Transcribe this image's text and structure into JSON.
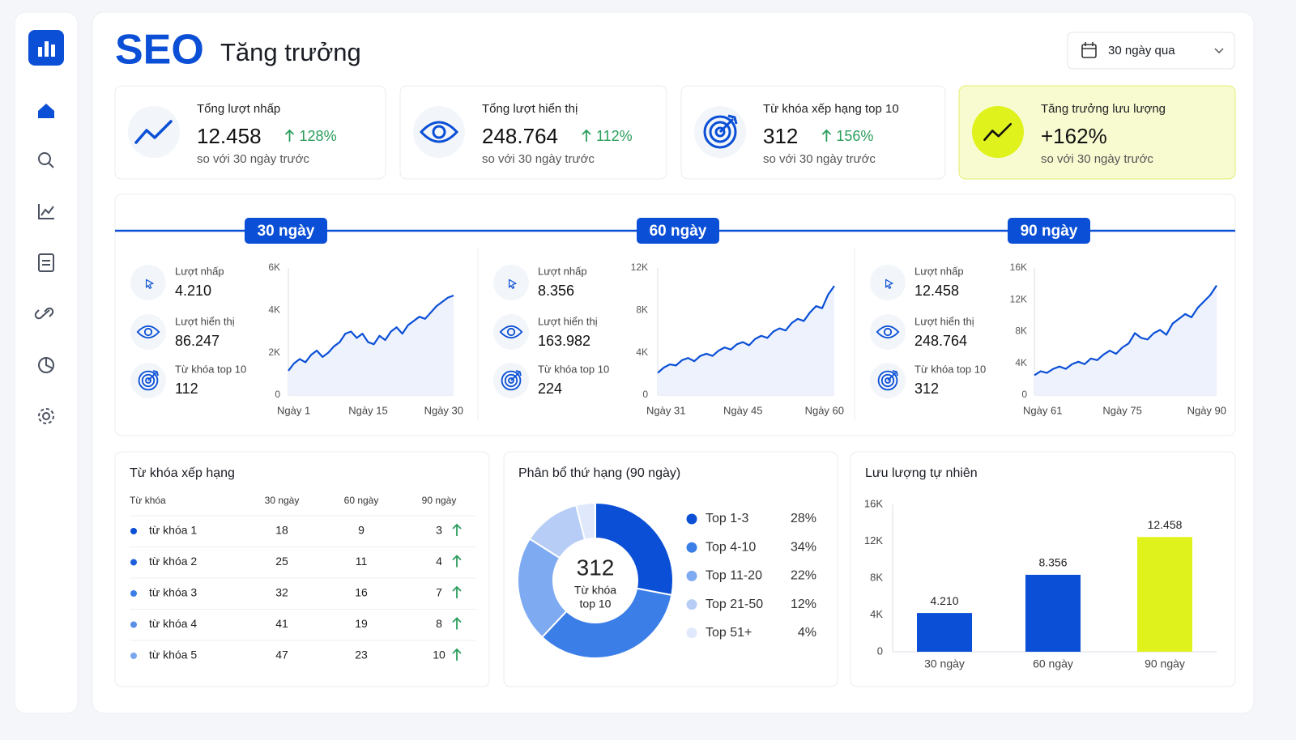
{
  "header": {
    "logo": "SEO",
    "title": "Tăng trưởng",
    "date_range": "30 ngày qua"
  },
  "kpis": [
    {
      "label": "Tổng lượt nhấp",
      "value": "12.458",
      "change": "128%",
      "note": "so với 30 ngày trước"
    },
    {
      "label": "Tổng lượt hiển thị",
      "value": "248.764",
      "change": "112%",
      "note": "so với 30 ngày trước"
    },
    {
      "label": "Từ khóa xếp hạng top 10",
      "value": "312",
      "change": "156%",
      "note": "so với 30 ngày trước"
    },
    {
      "label": "Tăng trưởng lưu lượng",
      "value": "+162%",
      "note": "so với 30 ngày trước"
    }
  ],
  "periods": [
    {
      "label": "30 ngày",
      "metrics": [
        {
          "label": "Lượt nhấp",
          "value": "4.210"
        },
        {
          "label": "Lượt hiển thị",
          "value": "86.247"
        },
        {
          "label": "Từ khóa top 10",
          "value": "112"
        }
      ]
    },
    {
      "label": "60 ngày",
      "metrics": [
        {
          "label": "Lượt nhấp",
          "value": "8.356"
        },
        {
          "label": "Lượt hiển thị",
          "value": "163.982"
        },
        {
          "label": "Từ khóa top 10",
          "value": "224"
        }
      ]
    },
    {
      "label": "90 ngày",
      "metrics": [
        {
          "label": "Lượt nhấp",
          "value": "12.458"
        },
        {
          "label": "Lượt hiển thị",
          "value": "248.764"
        },
        {
          "label": "Từ khóa top 10",
          "value": "312"
        }
      ]
    }
  ],
  "keywords": {
    "title": "Từ khóa xếp hạng",
    "columns": [
      "Từ khóa",
      "30 ngày",
      "60 ngày",
      "90 ngày"
    ],
    "rows": [
      [
        "từ khóa 1",
        "18",
        "9",
        "3"
      ],
      [
        "từ khóa 2",
        "25",
        "11",
        "4"
      ],
      [
        "từ khóa 3",
        "32",
        "16",
        "7"
      ],
      [
        "từ khóa 4",
        "41",
        "19",
        "8"
      ],
      [
        "từ khóa 5",
        "47",
        "23",
        "10"
      ]
    ]
  },
  "chart_data": [
    {
      "type": "area",
      "color": "#0a4fd6",
      "categories": [
        "Ngày 1",
        null,
        null,
        null,
        null,
        null,
        null,
        null,
        null,
        null,
        null,
        null,
        null,
        null,
        "Ngày 15",
        null,
        null,
        null,
        null,
        null,
        null,
        null,
        null,
        null,
        null,
        null,
        null,
        null,
        null,
        "Ngày 30"
      ],
      "values": [
        1150,
        1500,
        1700,
        1550,
        1900,
        2100,
        1800,
        2000,
        2300,
        2500,
        2900,
        3000,
        2700,
        2900,
        2500,
        2400,
        2800,
        2600,
        3000,
        3200,
        2900,
        3300,
        3500,
        3700,
        3600,
        3900,
        4200,
        4400,
        4600,
        4700
      ],
      "ylim": [
        0,
        6000
      ],
      "yticks": [
        0,
        {
          "value": 2000,
          "label": "2K"
        },
        {
          "value": 4000,
          "label": "4K"
        },
        {
          "value": 6000,
          "label": "6K"
        }
      ]
    },
    {
      "type": "area",
      "color": "#0a4fd6",
      "categories": [
        "Ngày 31",
        null,
        null,
        null,
        null,
        null,
        null,
        null,
        null,
        null,
        null,
        null,
        null,
        null,
        "Ngày 45",
        null,
        null,
        null,
        null,
        null,
        null,
        null,
        null,
        null,
        null,
        null,
        null,
        null,
        null,
        "Ngày 60"
      ],
      "values": [
        2100,
        2600,
        2900,
        2800,
        3300,
        3500,
        3200,
        3700,
        3900,
        3700,
        4200,
        4500,
        4300,
        4800,
        5000,
        4700,
        5300,
        5600,
        5400,
        6000,
        6300,
        6100,
        6800,
        7200,
        7000,
        7800,
        8400,
        8200,
        9500,
        10300
      ],
      "ylim": [
        0,
        12000
      ],
      "yticks": [
        0,
        {
          "value": 4000,
          "label": "4K"
        },
        {
          "value": 8000,
          "label": "8K"
        },
        {
          "value": 12000,
          "label": "12K"
        }
      ]
    },
    {
      "type": "area",
      "color": "#0a4fd6",
      "categories": [
        "Ngày 61",
        null,
        null,
        null,
        null,
        null,
        null,
        null,
        null,
        null,
        null,
        null,
        null,
        null,
        "Ngày 75",
        null,
        null,
        null,
        null,
        null,
        null,
        null,
        null,
        null,
        null,
        null,
        null,
        null,
        null,
        "Ngày 90"
      ],
      "values": [
        2500,
        3000,
        2800,
        3300,
        3600,
        3300,
        3900,
        4200,
        3900,
        4600,
        4400,
        5100,
        5600,
        5200,
        6000,
        6500,
        7800,
        7200,
        7000,
        7800,
        8200,
        7600,
        9000,
        9600,
        10200,
        9800,
        11000,
        11800,
        12600,
        13800
      ],
      "ylim": [
        0,
        16000
      ],
      "yticks": [
        0,
        {
          "value": 4000,
          "label": "4K"
        },
        {
          "value": 8000,
          "label": "8K"
        },
        {
          "value": 12000,
          "label": "12K"
        },
        {
          "value": 16000,
          "label": "16K"
        }
      ]
    },
    {
      "type": "pie",
      "title": "Phân bổ thứ hạng (90 ngày)",
      "center_text": [
        "312",
        "Từ khóa",
        "top 10"
      ],
      "categories": [
        "Top 1-3",
        "Top 4-10",
        "Top 11-20",
        "Top 21-50",
        "Top 51+"
      ],
      "values": [
        28,
        34,
        22,
        12,
        4
      ],
      "value_labels": [
        "28%",
        "34%",
        "22%",
        "12%",
        "4%"
      ],
      "colors": [
        "#0a4fd6",
        "#3b7ee8",
        "#7eaaf2",
        "#b7cdf6",
        "#dfe9fb"
      ]
    },
    {
      "type": "bar",
      "title": "Lưu lượng tự nhiên",
      "categories": [
        "30 ngày",
        "60 ngày",
        "90 ngày"
      ],
      "values": [
        4210,
        8356,
        12458
      ],
      "value_labels": [
        "4.210",
        "8.356",
        "12.458"
      ],
      "colors": [
        "#0a4fd6",
        "#0a4fd6",
        "#dff21c"
      ],
      "ylim": [
        0,
        16000
      ],
      "yticks": [
        0,
        {
          "value": 4000,
          "label": "4K"
        },
        {
          "value": 8000,
          "label": "8K"
        },
        {
          "value": 12000,
          "label": "12K"
        },
        {
          "value": 16000,
          "label": "16K"
        }
      ]
    }
  ]
}
